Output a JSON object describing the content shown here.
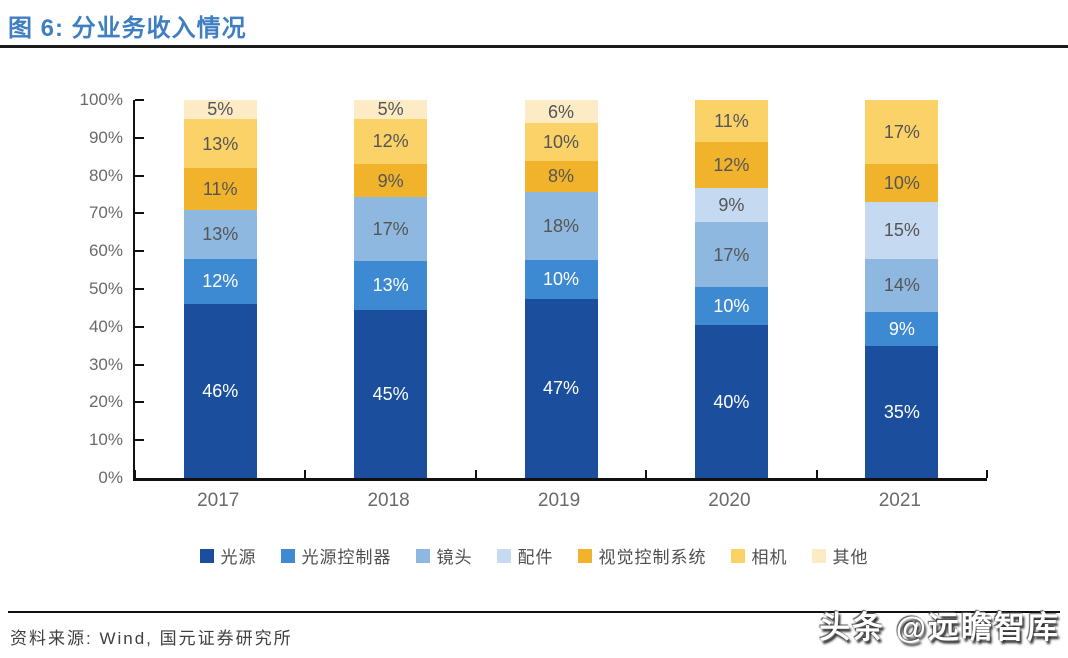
{
  "header": {
    "title": "图 6:  分业务收入情况"
  },
  "footer": {
    "source": "资料来源: Wind, 国元证券研究所",
    "watermark": "头条 @远瞻智库"
  },
  "chart_data": {
    "type": "bar",
    "stacked": true,
    "percent": true,
    "title": "分业务收入情况",
    "categories": [
      "2017",
      "2018",
      "2019",
      "2020",
      "2021"
    ],
    "series": [
      {
        "name": "光源",
        "color": "#1B4F9E",
        "label_color": "#FFFFFF",
        "values": [
          46,
          45,
          47,
          40,
          35
        ]
      },
      {
        "name": "光源控制器",
        "color": "#3E8AD2",
        "label_color": "#FFFFFF",
        "values": [
          12,
          13,
          10,
          10,
          9
        ]
      },
      {
        "name": "镜头",
        "color": "#8FB8E0",
        "label_color": "#555555",
        "values": [
          13,
          17,
          18,
          17,
          14
        ]
      },
      {
        "name": "配件",
        "color": "#C5D9F0",
        "label_color": "#555555",
        "values": [
          0,
          0,
          0,
          9,
          15
        ]
      },
      {
        "name": "视觉控制系统",
        "color": "#F2B32C",
        "label_color": "#555555",
        "values": [
          11,
          9,
          8,
          12,
          10
        ]
      },
      {
        "name": "相机",
        "color": "#FBD268",
        "label_color": "#555555",
        "values": [
          13,
          12,
          10,
          11,
          17
        ]
      },
      {
        "name": "其他",
        "color": "#FCEBC4",
        "label_color": "#555555",
        "values": [
          5,
          5,
          6,
          0,
          0
        ]
      }
    ],
    "yticks": [
      "0%",
      "10%",
      "20%",
      "30%",
      "40%",
      "50%",
      "60%",
      "70%",
      "80%",
      "90%",
      "100%"
    ],
    "ylim": [
      0,
      100
    ],
    "xlabel": "",
    "ylabel": "",
    "grid": false,
    "legend_position": "bottom",
    "bar_label_format": "{value}%"
  }
}
